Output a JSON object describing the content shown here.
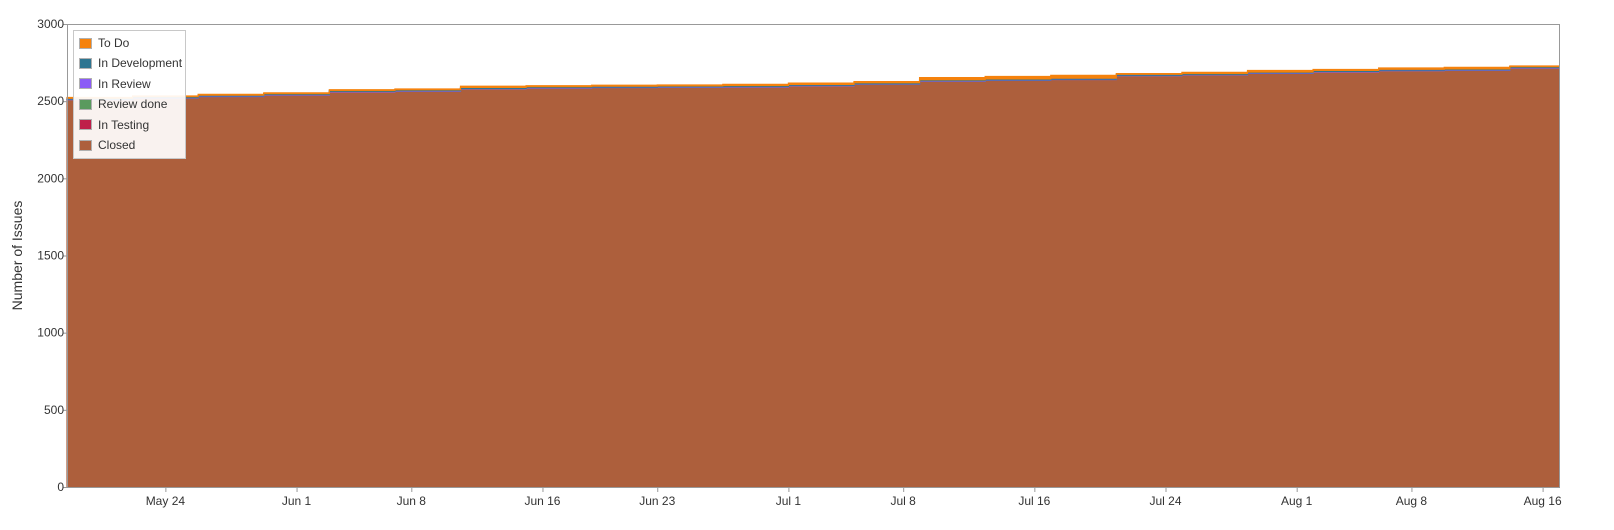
{
  "chart_data": {
    "type": "area",
    "stacked": true,
    "title": "",
    "xlabel": "",
    "ylabel": "Number of Issues",
    "ylim": [
      0,
      3000
    ],
    "yticks": [
      0,
      500,
      1000,
      1500,
      2000,
      2500,
      3000
    ],
    "xlim": [
      "2024-05-18",
      "2024-08-17"
    ],
    "xticks": [
      {
        "date": "2024-05-24",
        "label": "May 24"
      },
      {
        "date": "2024-06-01",
        "label": "Jun 1"
      },
      {
        "date": "2024-06-08",
        "label": "Jun 8"
      },
      {
        "date": "2024-06-16",
        "label": "Jun 16"
      },
      {
        "date": "2024-06-23",
        "label": "Jun 23"
      },
      {
        "date": "2024-07-01",
        "label": "Jul 1"
      },
      {
        "date": "2024-07-08",
        "label": "Jul 8"
      },
      {
        "date": "2024-07-16",
        "label": "Jul 16"
      },
      {
        "date": "2024-07-24",
        "label": "Jul 24"
      },
      {
        "date": "2024-08-01",
        "label": "Aug 1"
      },
      {
        "date": "2024-08-08",
        "label": "Aug 8"
      },
      {
        "date": "2024-08-16",
        "label": "Aug 16"
      }
    ],
    "grid": false,
    "legend_position": "top-left",
    "x": [
      "2024-05-18",
      "2024-05-22",
      "2024-05-26",
      "2024-05-30",
      "2024-06-03",
      "2024-06-07",
      "2024-06-11",
      "2024-06-15",
      "2024-06-19",
      "2024-06-23",
      "2024-06-27",
      "2024-07-01",
      "2024-07-05",
      "2024-07-09",
      "2024-07-13",
      "2024-07-17",
      "2024-07-21",
      "2024-07-25",
      "2024-07-29",
      "2024-08-02",
      "2024-08-06",
      "2024-08-10",
      "2024-08-14",
      "2024-08-17"
    ],
    "series": [
      {
        "name": "Closed",
        "color": "#ad5f3c",
        "values": [
          2510,
          2520,
          2530,
          2540,
          2560,
          2565,
          2580,
          2585,
          2588,
          2590,
          2592,
          2600,
          2610,
          2630,
          2635,
          2640,
          2665,
          2670,
          2680,
          2690,
          2698,
          2700,
          2715,
          2718
        ]
      },
      {
        "name": "In Testing",
        "color": "#bf1f4a",
        "values": [
          0,
          0,
          0,
          0,
          0,
          0,
          0,
          0,
          0,
          0,
          0,
          0,
          0,
          0,
          0,
          0,
          0,
          0,
          0,
          0,
          0,
          0,
          0,
          0
        ]
      },
      {
        "name": "Review done",
        "color": "#5a9a5e",
        "values": [
          0,
          0,
          0,
          0,
          0,
          0,
          0,
          0,
          0,
          0,
          0,
          0,
          0,
          0,
          0,
          0,
          0,
          0,
          0,
          0,
          0,
          0,
          0,
          0
        ]
      },
      {
        "name": "In Review",
        "color": "#8b5cf6",
        "values": [
          3,
          3,
          3,
          3,
          3,
          3,
          3,
          3,
          3,
          3,
          3,
          3,
          3,
          3,
          3,
          3,
          3,
          3,
          3,
          3,
          3,
          3,
          3,
          3
        ]
      },
      {
        "name": "In Development",
        "color": "#2e7591",
        "values": [
          6,
          6,
          6,
          6,
          6,
          6,
          6,
          6,
          6,
          6,
          6,
          6,
          6,
          6,
          6,
          6,
          6,
          6,
          6,
          6,
          6,
          6,
          6,
          6
        ]
      },
      {
        "name": "To Do",
        "color": "#f5820d",
        "values": [
          5,
          5,
          5,
          5,
          5,
          5,
          8,
          6,
          6,
          6,
          8,
          8,
          8,
          14,
          16,
          18,
          5,
          8,
          10,
          6,
          8,
          10,
          4,
          4
        ]
      }
    ],
    "legend": [
      "To Do",
      "In Development",
      "In Review",
      "Review done",
      "In Testing",
      "Closed"
    ],
    "axis_color": "#999999",
    "background": "#ffffff"
  }
}
